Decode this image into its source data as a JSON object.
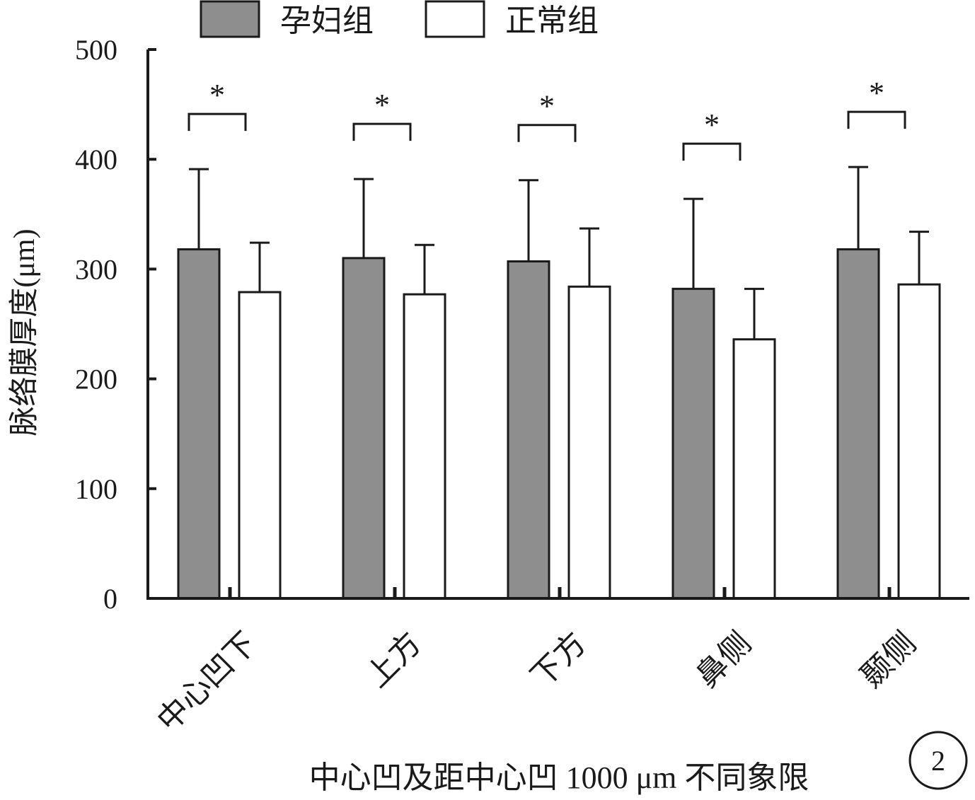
{
  "chart_data": {
    "type": "bar",
    "title": "",
    "ylabel": "脉络膜厚度(μm)",
    "xlabel": "中心凹及距中心凹 1000 μm 不同象限",
    "ylim": [
      0,
      500
    ],
    "yticks": [
      0,
      100,
      200,
      300,
      400,
      500
    ],
    "categories": [
      "中心凹下",
      "上方",
      "下方",
      "鼻侧",
      "颞侧"
    ],
    "series": [
      {
        "name": "孕妇组",
        "color": "#8f8e8f",
        "values": [
          318,
          310,
          307,
          282,
          318
        ],
        "error": [
          73,
          72,
          74,
          82,
          75
        ]
      },
      {
        "name": "正常组",
        "color": "#ffffff",
        "values": [
          279,
          277,
          284,
          236,
          286
        ],
        "error": [
          45,
          45,
          53,
          46,
          48
        ]
      }
    ],
    "significance": [
      "*",
      "*",
      "*",
      "*",
      "*"
    ],
    "legend_position": "top",
    "grid": false,
    "panel_label": "2"
  }
}
